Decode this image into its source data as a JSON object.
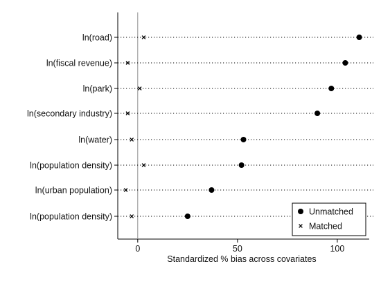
{
  "chart_data": {
    "type": "scatter",
    "orientation": "horizontal",
    "categories": [
      "ln(road)",
      "ln(fiscal revenue)",
      "ln(park)",
      "ln(secondary industry)",
      "ln(water)",
      "ln(population density)",
      "ln(urban population)",
      "ln(population density)"
    ],
    "series": [
      {
        "name": "Unmatched",
        "marker": "filled-circle",
        "color": "#000000",
        "values": [
          111,
          104,
          97,
          90,
          53,
          52,
          37,
          25
        ]
      },
      {
        "name": "Matched",
        "marker": "x",
        "color": "#000000",
        "values": [
          3,
          -5,
          1,
          -5,
          -3,
          3,
          -6,
          -3
        ]
      }
    ],
    "xlabel": "Standardized % bias across covariates",
    "ylabel": "",
    "xlim": [
      -10,
      116
    ],
    "x_ticks": [
      0,
      50,
      100
    ],
    "x_tick_labels": [
      "0",
      "50",
      "100"
    ],
    "zero_reference_line": true,
    "row_guides": "dotted",
    "grid": false,
    "legend_position": "bottom-right"
  }
}
